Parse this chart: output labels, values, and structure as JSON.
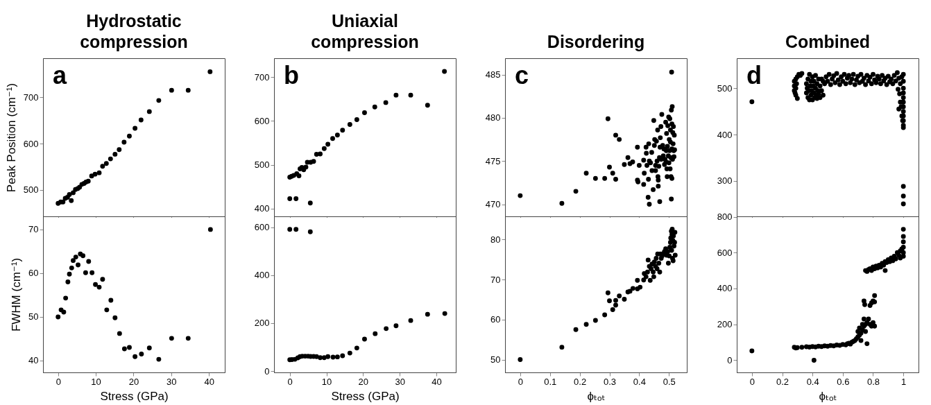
{
  "chart_data": [
    {
      "type": "scatter",
      "title": "Hydrostatic compression",
      "annotations": [
        "a"
      ],
      "ylabel": "Peak Position (cm⁻¹)",
      "color": "#000000",
      "marker": "circle",
      "xlim": [
        -4,
        44.2
      ],
      "ylim": [
        443,
        784
      ],
      "xticks": [
        0,
        10,
        20,
        30,
        40
      ],
      "yticks": [
        500,
        600,
        700
      ],
      "tick_labels": "y",
      "x": [
        0,
        0.7,
        1.3,
        1.9,
        2.5,
        3.0,
        3.5,
        4.0,
        4.6,
        5.2,
        5.7,
        6.3,
        6.9,
        7.4,
        8.0,
        8.9,
        9.8,
        10.9,
        11.8,
        12.8,
        13.9,
        15.1,
        16.2,
        17.5,
        18.9,
        20.4,
        22.0,
        24.2,
        26.7,
        30.1,
        34.5,
        40.3
      ],
      "values": [
        471,
        474,
        474,
        482,
        484,
        490,
        477,
        494,
        501,
        503,
        506,
        512,
        514,
        517,
        519,
        530,
        534,
        537,
        551,
        557,
        567,
        577,
        587,
        603,
        616,
        633,
        651,
        669,
        693,
        715,
        715,
        755
      ]
    },
    {
      "type": "scatter",
      "title": "Uniaxial compression",
      "annotations": [
        "b"
      ],
      "color": "#000000",
      "marker": "circle",
      "xlim": [
        -4.3,
        45.3
      ],
      "ylim": [
        382.6,
        743
      ],
      "xticks": [
        0,
        10,
        20,
        30,
        40
      ],
      "yticks": [
        400,
        500,
        600,
        700
      ],
      "tick_labels": "y",
      "x": [
        0,
        0.5,
        1.1,
        1.9,
        2.5,
        2.8,
        3.3,
        3.8,
        4.4,
        4.8,
        5.7,
        6.5,
        7.3,
        8.3,
        9.4,
        10.4,
        11.7,
        13.0,
        14.4,
        16.4,
        18.3,
        20.4,
        23.2,
        26.2,
        29.0,
        33.0,
        37.6,
        42.2,
        0,
        1.7,
        5.6
      ],
      "values": [
        472,
        474,
        476,
        480,
        475,
        491,
        494,
        489,
        495,
        506,
        506,
        508,
        524,
        525,
        537,
        547,
        560,
        568,
        579,
        592,
        603,
        619,
        632,
        642,
        659,
        659,
        636,
        713,
        423,
        423,
        413
      ]
    },
    {
      "type": "scatter",
      "title": "Disordering",
      "annotations": [
        "c"
      ],
      "color": "#000000",
      "marker": "circle",
      "xlim": [
        -0.051,
        0.56
      ],
      "ylim": [
        468.6,
        486.9
      ],
      "xticks": [
        0,
        0.1,
        0.2,
        0.3,
        0.4,
        0.5
      ],
      "yticks": [
        470,
        475,
        480,
        485
      ],
      "tick_labels": "y",
      "x": [
        0,
        0.14,
        0.187,
        0.222,
        0.253,
        0.284,
        0.295,
        0.3,
        0.311,
        0.321,
        0.321,
        0.333,
        0.35,
        0.362,
        0.369,
        0.378,
        0.394,
        0.394,
        0.396,
        0.4,
        0.415,
        0.415,
        0.417,
        0.423,
        0.424,
        0.426,
        0.43,
        0.432,
        0.434,
        0.434,
        0.431,
        0.438,
        0.442,
        0.443,
        0.447,
        0.449,
        0.451,
        0.452,
        0.455,
        0.455,
        0.458,
        0.46,
        0.462,
        0.463,
        0.464,
        0.464,
        0.466,
        0.468,
        0.469,
        0.47,
        0.471,
        0.473,
        0.474,
        0.476,
        0.479,
        0.481,
        0.483,
        0.485,
        0.487,
        0.489,
        0.49,
        0.491,
        0.492,
        0.493,
        0.494,
        0.495,
        0.496,
        0.498,
        0.499,
        0.5,
        0.501,
        0.502,
        0.503,
        0.504,
        0.505,
        0.505,
        0.506,
        0.507,
        0.508,
        0.508,
        0.509,
        0.51,
        0.51,
        0.51,
        0.511,
        0.512,
        0.513,
        0.514,
        0.515,
        0.516,
        0.517,
        0.518,
        0.519
      ],
      "values": [
        471.0,
        470.1,
        471.5,
        473.6,
        473.0,
        473.0,
        479.9,
        474.3,
        473.6,
        478.0,
        472.9,
        477.5,
        474.6,
        475.4,
        474.7,
        474.9,
        476.6,
        472.8,
        472.6,
        474.5,
        475.1,
        472.3,
        473.6,
        476.6,
        475.9,
        474.5,
        470.8,
        477.0,
        475.0,
        470.0,
        472.9,
        474.8,
        476.0,
        473.9,
        471.7,
        479.7,
        476.8,
        477.5,
        474.5,
        473.9,
        477.3,
        475.0,
        478.6,
        473.2,
        472.8,
        472.1,
        474.4,
        475.4,
        470.3,
        476.6,
        477.7,
        479.0,
        475.2,
        480.4,
        476.8,
        475.6,
        476.4,
        474.6,
        475.2,
        479.5,
        474.9,
        476.2,
        478.2,
        474.1,
        473.2,
        476.7,
        479.1,
        475.6,
        480.1,
        474.8,
        477.5,
        476.2,
        479.9,
        474.1,
        478.6,
        477.2,
        475.4,
        473.2,
        470.6,
        480.9,
        485.3,
        476.4,
        473.0,
        479.3,
        481.3,
        475.2,
        478.3,
        477.0,
        479.0,
        476.2,
        475.5,
        478.0,
        476.3
      ]
    },
    {
      "type": "scatter",
      "title": "Combined",
      "annotations": [
        "d"
      ],
      "color": "#000000",
      "marker": "circle",
      "xlim": [
        -0.1,
        1.1
      ],
      "ylim": [
        223,
        565
      ],
      "xticks": [
        0,
        0.2,
        0.4,
        0.6,
        0.8,
        1
      ],
      "yticks": [
        300,
        400,
        500
      ],
      "tick_labels": "y",
      "x": [
        0,
        0.28,
        0.28,
        0.28,
        0.285,
        0.29,
        0.29,
        0.295,
        0.29,
        0.3,
        0.3,
        0.31,
        0.32,
        0.33,
        0.36,
        0.36,
        0.365,
        0.37,
        0.37,
        0.375,
        0.38,
        0.38,
        0.385,
        0.39,
        0.39,
        0.395,
        0.4,
        0.4,
        0.405,
        0.41,
        0.41,
        0.415,
        0.42,
        0.42,
        0.425,
        0.43,
        0.43,
        0.435,
        0.44,
        0.44,
        0.45,
        0.45,
        0.46,
        0.46,
        0.47,
        0.47,
        0.48,
        0.49,
        0.5,
        0.51,
        0.52,
        0.53,
        0.54,
        0.55,
        0.56,
        0.57,
        0.58,
        0.59,
        0.6,
        0.61,
        0.62,
        0.63,
        0.64,
        0.65,
        0.66,
        0.67,
        0.68,
        0.69,
        0.7,
        0.71,
        0.72,
        0.73,
        0.74,
        0.75,
        0.76,
        0.77,
        0.78,
        0.79,
        0.8,
        0.81,
        0.82,
        0.83,
        0.84,
        0.85,
        0.86,
        0.87,
        0.88,
        0.89,
        0.9,
        0.91,
        0.92,
        0.93,
        0.94,
        0.95,
        0.96,
        0.965,
        0.97,
        0.975,
        0.98,
        0.985,
        0.99,
        0.995,
        0.97,
        0.98,
        0.99,
        0.995,
        1,
        1,
        1,
        1,
        1,
        1,
        1,
        1,
        1,
        1,
        1,
        1,
        1,
        1,
        1
      ],
      "values": [
        471,
        495,
        505,
        515,
        490,
        485,
        520,
        510,
        500,
        478,
        525,
        530,
        528,
        532,
        490,
        510,
        500,
        480,
        520,
        495,
        475,
        530,
        505,
        485,
        515,
        495,
        475,
        525,
        505,
        490,
        515,
        480,
        500,
        528,
        485,
        510,
        478,
        495,
        520,
        488,
        505,
        480,
        495,
        520,
        485,
        515,
        510,
        525,
        515,
        530,
        508,
        520,
        527,
        512,
        532,
        518,
        508,
        525,
        515,
        530,
        510,
        522,
        528,
        512,
        520,
        530,
        508,
        518,
        526,
        512,
        530,
        515,
        522,
        508,
        528,
        516,
        524,
        510,
        530,
        518,
        512,
        526,
        520,
        510,
        528,
        516,
        522,
        508,
        526,
        514,
        520,
        510,
        528,
        516,
        534,
        498,
        522,
        488,
        510,
        460,
        525,
        470,
        455,
        470,
        440,
        430,
        530,
        515,
        500,
        490,
        480,
        470,
        460,
        450,
        440,
        430,
        420,
        415,
        288,
        267,
        250
      ]
    },
    {
      "type": "scatter",
      "ylabel": "FWHM (cm⁻¹)",
      "xlabel": "Stress (GPa)",
      "color": "#000000",
      "marker": "circle",
      "xlim": [
        -4,
        44.2
      ],
      "ylim": [
        37.3,
        73
      ],
      "xticks": [
        0,
        10,
        20,
        30,
        40
      ],
      "yticks": [
        40,
        50,
        60,
        70
      ],
      "x": [
        0,
        0.8,
        1.5,
        2.0,
        2.6,
        3.0,
        3.6,
        4.0,
        4.7,
        5.3,
        5.9,
        6.6,
        7.3,
        8.1,
        9.0,
        9.9,
        10.9,
        11.8,
        12.9,
        14.0,
        15.1,
        16.3,
        17.6,
        18.9,
        20.4,
        22.1,
        24.2,
        26.7,
        30.1,
        34.5,
        40.4
      ],
      "values": [
        50.0,
        51.6,
        51.1,
        54.3,
        58.0,
        59.8,
        61.2,
        62.9,
        63.7,
        61.9,
        64.4,
        64.0,
        60.1,
        62.7,
        60.1,
        57.4,
        56.8,
        58.6,
        51.6,
        53.8,
        49.8,
        46.2,
        42.7,
        43.0,
        40.9,
        41.5,
        42.9,
        40.3,
        45.1,
        45.1,
        70.0
      ]
    },
    {
      "type": "scatter",
      "xlabel": "Stress (GPa)",
      "color": "#000000",
      "marker": "circle",
      "xlim": [
        -4.3,
        45.3
      ],
      "ylim": [
        -5.7,
        645.5
      ],
      "xticks": [
        0,
        10,
        20,
        30,
        40
      ],
      "yticks": [
        0,
        200,
        400,
        600
      ],
      "x": [
        0,
        1.7,
        5.6,
        0,
        0.6,
        1.4,
        2.2,
        2.8,
        3.4,
        4.2,
        5.0,
        5.7,
        6.5,
        7.3,
        8.3,
        9.4,
        10.4,
        11.8,
        13.0,
        14.4,
        16.4,
        18.3,
        20.4,
        23.3,
        26.3,
        29.0,
        33.0,
        37.6,
        42.3
      ],
      "values": [
        591,
        591,
        581,
        47,
        48,
        49,
        55,
        60,
        62,
        62,
        62,
        61,
        61,
        60,
        56,
        56,
        60,
        58,
        59,
        64,
        75,
        96,
        133,
        156,
        177,
        189,
        211,
        237,
        240
      ]
    },
    {
      "type": "scatter",
      "xlabel": "ϕₜₒₜ",
      "color": "#000000",
      "marker": "circle",
      "xlim": [
        -0.051,
        0.56
      ],
      "ylim": [
        46.8,
        85.8
      ],
      "xticks": [
        0,
        0.1,
        0.2,
        0.3,
        0.4,
        0.5
      ],
      "yticks": [
        50,
        60,
        70,
        80
      ],
      "x": [
        0,
        0.14,
        0.187,
        0.222,
        0.253,
        0.284,
        0.295,
        0.3,
        0.311,
        0.321,
        0.321,
        0.333,
        0.35,
        0.362,
        0.369,
        0.379,
        0.394,
        0.394,
        0.403,
        0.415,
        0.417,
        0.423,
        0.428,
        0.43,
        0.434,
        0.437,
        0.44,
        0.443,
        0.447,
        0.449,
        0.451,
        0.455,
        0.457,
        0.46,
        0.462,
        0.466,
        0.469,
        0.471,
        0.474,
        0.477,
        0.481,
        0.485,
        0.489,
        0.492,
        0.496,
        0.498,
        0.501,
        0.503,
        0.505,
        0.506,
        0.508,
        0.509,
        0.51,
        0.511,
        0.512,
        0.513,
        0.514,
        0.515,
        0.517,
        0.519,
        0.52,
        0.521
      ],
      "values": [
        50.0,
        53.1,
        57.5,
        58.8,
        59.8,
        61.2,
        66.7,
        64.7,
        62.5,
        64.8,
        63.6,
        65.9,
        65.1,
        66.9,
        67.1,
        67.8,
        67.7,
        69.8,
        68.1,
        69.9,
        71.5,
        70.7,
        71.9,
        74.9,
        73.3,
        69.8,
        72.7,
        73.9,
        71.9,
        70.7,
        74.4,
        73.3,
        75.3,
        72.7,
        76.4,
        74.1,
        71.9,
        76.4,
        75.3,
        75.9,
        76.5,
        77.0,
        77.7,
        76.1,
        77.0,
        74.1,
        75.9,
        78.1,
        79.3,
        80.4,
        82.1,
        77.3,
        81.3,
        82.6,
        75.3,
        79.8,
        74.7,
        80.9,
        78.4,
        79.3,
        81.8,
        76.1
      ]
    },
    {
      "type": "scatter",
      "xlabel": "ϕₜₒₜ",
      "color": "#000000",
      "marker": "circle",
      "xlim": [
        -0.1,
        1.1
      ],
      "ylim": [
        -68,
        802
      ],
      "xticks": [
        0,
        0.2,
        0.4,
        0.6,
        0.8,
        1
      ],
      "yticks": [
        0,
        200,
        400,
        600,
        800
      ],
      "x": [
        0,
        0.41,
        0.28,
        0.29,
        0.3,
        0.33,
        0.36,
        0.38,
        0.4,
        0.42,
        0.44,
        0.46,
        0.48,
        0.5,
        0.52,
        0.54,
        0.56,
        0.58,
        0.6,
        0.62,
        0.63,
        0.64,
        0.65,
        0.66,
        0.67,
        0.68,
        0.69,
        0.7,
        0.7,
        0.71,
        0.71,
        0.72,
        0.72,
        0.73,
        0.73,
        0.74,
        0.74,
        0.75,
        0.75,
        0.76,
        0.76,
        0.77,
        0.78,
        0.79,
        0.8,
        0.81,
        0.74,
        0.745,
        0.78,
        0.79,
        0.8,
        0.81,
        0.81,
        0.75,
        0.76,
        0.77,
        0.78,
        0.79,
        0.8,
        0.81,
        0.82,
        0.83,
        0.84,
        0.85,
        0.86,
        0.87,
        0.88,
        0.88,
        0.89,
        0.9,
        0.91,
        0.92,
        0.93,
        0.94,
        0.95,
        0.96,
        0.97,
        0.98,
        0.98,
        0.99,
        1,
        1,
        1,
        1,
        1,
        1
      ],
      "values": [
        52,
        0,
        72,
        68,
        70,
        72,
        75,
        73,
        76,
        74,
        78,
        76,
        80,
        78,
        82,
        80,
        85,
        83,
        88,
        86,
        92,
        95,
        90,
        100,
        105,
        110,
        120,
        130,
        160,
        140,
        180,
        150,
        110,
        170,
        200,
        190,
        230,
        200,
        160,
        210,
        92,
        230,
        200,
        190,
        210,
        190,
        330,
        310,
        305,
        320,
        330,
        360,
        325,
        500,
        495,
        505,
        510,
        500,
        520,
        510,
        525,
        515,
        530,
        520,
        540,
        530,
        550,
        500,
        545,
        560,
        550,
        570,
        555,
        580,
        565,
        600,
        585,
        610,
        570,
        620,
        580,
        600,
        630,
        660,
        690,
        730
      ]
    }
  ]
}
